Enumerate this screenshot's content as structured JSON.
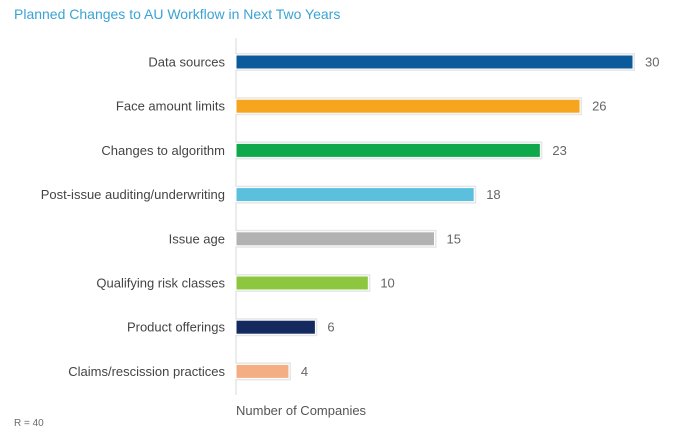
{
  "title": "Planned Changes to AU Workflow in Next Two Years",
  "footnote": "R = 40",
  "chart_data": {
    "type": "bar",
    "orientation": "horizontal",
    "title": "Planned Changes to AU Workflow in Next Two Years",
    "xlabel": "Number of Companies",
    "ylabel": "",
    "xlim": [
      0,
      30
    ],
    "grid": false,
    "categories": [
      "Data sources",
      "Face amount limits",
      "Changes to algorithm",
      "Post-issue auditing/underwriting",
      "Issue age",
      "Qualifying risk classes",
      "Product offerings",
      "Claims/rescission practices"
    ],
    "values": [
      30,
      26,
      23,
      18,
      15,
      10,
      6,
      4
    ],
    "colors": [
      "#0a5a9c",
      "#f5a51e",
      "#0fa84a",
      "#5bc0de",
      "#b2b2b2",
      "#8dc63f",
      "#142a5f",
      "#f4ae84"
    ]
  }
}
